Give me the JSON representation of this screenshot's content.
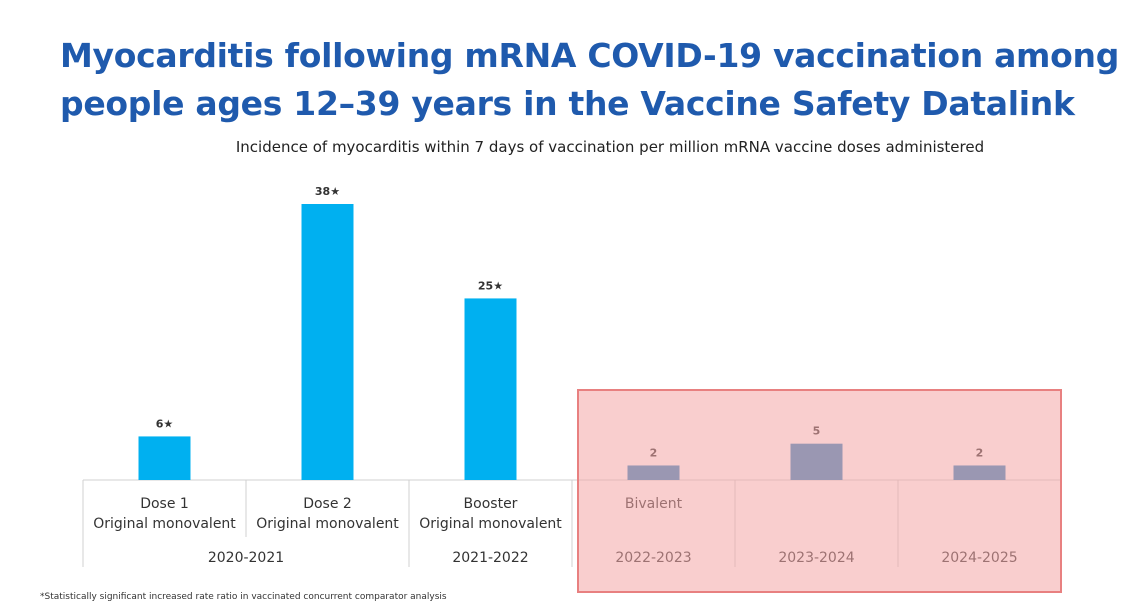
{
  "title": "Myocarditis following mRNA COVID-19 vaccination among people ages 12–39 years in the Vaccine Safety Datalink",
  "footnote": "*Statistically significant increased rate ratio in vaccinated concurrent comparator analysis",
  "colors": {
    "title": "#1f5aad",
    "bar_original": "#00b0f0",
    "bar_highlight": "#2e86c1",
    "highlight_fill": "#f4a6a6",
    "highlight_border": "#e88080",
    "grid": "#d0d0d0"
  },
  "chart_data": {
    "type": "bar",
    "title": "Incidence of myocarditis within 7 days of vaccination per million mRNA vaccine doses administered",
    "xlabel": "",
    "ylabel": "",
    "ylim": [
      0,
      40
    ],
    "categories": [
      [
        "Dose 1",
        "Original monovalent"
      ],
      [
        "Dose 2",
        "Original monovalent"
      ],
      [
        "Booster",
        "Original monovalent"
      ],
      [
        "Bivalent"
      ],
      [
        ""
      ],
      [
        ""
      ]
    ],
    "values": [
      6,
      38,
      25,
      2,
      5,
      2
    ],
    "data_labels": [
      "6★",
      "38★",
      "25★",
      "2",
      "5",
      "2"
    ],
    "groups": [
      {
        "label": "2020-2021",
        "span": 2
      },
      {
        "label": "2021-2022",
        "span": 1
      },
      {
        "label": "2022-2023",
        "span": 1
      },
      {
        "label": "2023-2024",
        "span": 1
      },
      {
        "label": "2024-2025",
        "span": 1
      }
    ],
    "highlighted_columns": [
      3,
      4,
      5
    ],
    "significance_marker": "★"
  }
}
